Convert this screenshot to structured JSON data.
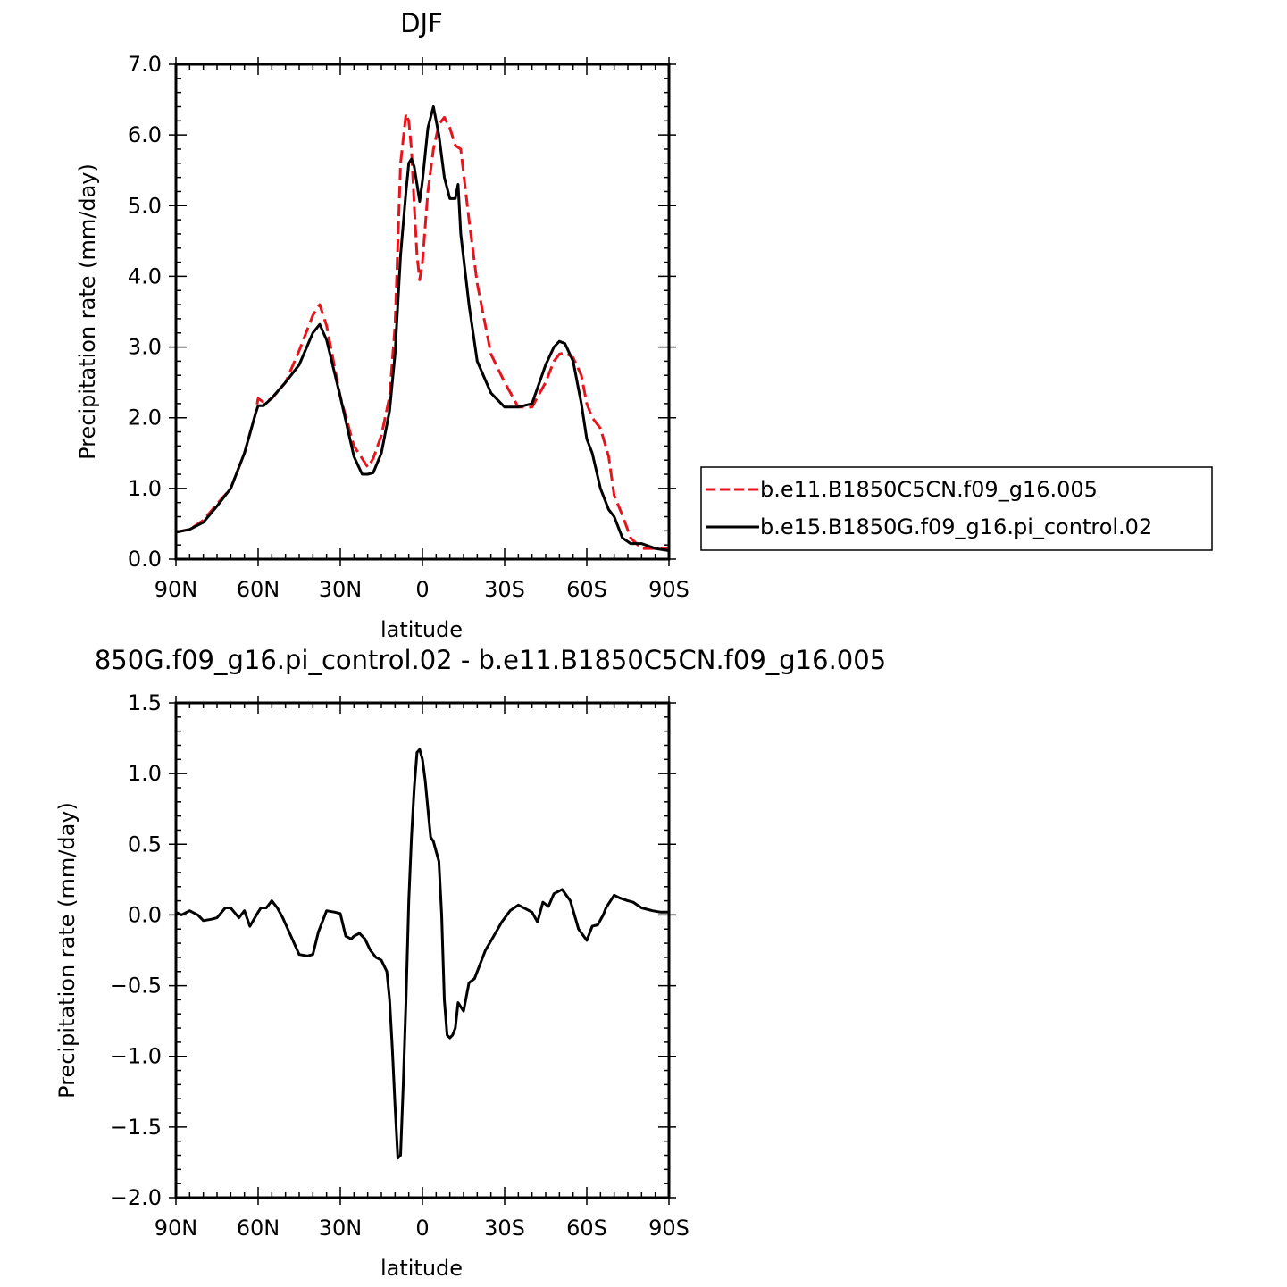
{
  "chart_data": [
    {
      "type": "line",
      "title": "DJF",
      "xlabel": "latitude",
      "ylabel": "Precipitation rate (mm/day)",
      "xlim": [
        -90,
        90
      ],
      "ylim": [
        0,
        7
      ],
      "x_ticks": [
        -90,
        -60,
        -30,
        0,
        30,
        60,
        90
      ],
      "x_tick_labels": [
        "90N",
        "60N",
        "30N",
        "0",
        "30S",
        "60S",
        "90S"
      ],
      "y_ticks": [
        0,
        1,
        2,
        3,
        4,
        5,
        6,
        7
      ],
      "y_tick_labels": [
        "0.0",
        "1.0",
        "2.0",
        "3.0",
        "4.0",
        "5.0",
        "6.0",
        "7.0"
      ],
      "grid": false,
      "legend_position": "right",
      "series": [
        {
          "name": "b.e11.B1850C5CN.f09_g16.005",
          "color": "#e8141c",
          "dash": "dashed",
          "x": [
            -90,
            -85,
            -80,
            -75,
            -70,
            -65,
            -61,
            -60,
            -58,
            -55,
            -50,
            -45,
            -40,
            -37.5,
            -35,
            -30,
            -25,
            -20,
            -18,
            -15,
            -12,
            -10,
            -8,
            -6,
            -5,
            -4,
            -3,
            -2,
            -1,
            0,
            2,
            4,
            6,
            8,
            10,
            12,
            14,
            17,
            20,
            25,
            30,
            35,
            40,
            45,
            48,
            50,
            52,
            55,
            58,
            60,
            62,
            65,
            68,
            70,
            73,
            76,
            80,
            85,
            90
          ],
          "values": [
            0.38,
            0.42,
            0.55,
            0.78,
            1.0,
            1.5,
            2.05,
            2.27,
            2.22,
            2.27,
            2.5,
            2.95,
            3.45,
            3.6,
            3.3,
            2.3,
            1.6,
            1.3,
            1.42,
            1.75,
            2.3,
            3.3,
            5.6,
            6.3,
            6.2,
            5.8,
            5.0,
            4.3,
            3.95,
            4.2,
            5.2,
            5.8,
            6.15,
            6.25,
            6.1,
            5.85,
            5.8,
            4.8,
            3.9,
            2.9,
            2.5,
            2.15,
            2.15,
            2.5,
            2.8,
            2.9,
            2.92,
            2.85,
            2.6,
            2.2,
            2.0,
            1.85,
            1.45,
            0.9,
            0.62,
            0.3,
            0.15,
            0.15,
            0.15
          ]
        },
        {
          "name": "b.e15.B1850G.f09_g16.pi_control.02",
          "color": "#000000",
          "dash": "solid",
          "x": [
            -90,
            -85,
            -80,
            -75,
            -70,
            -65,
            -61,
            -60,
            -58,
            -55,
            -50,
            -45,
            -40,
            -37.5,
            -35,
            -30,
            -25,
            -22,
            -20,
            -18,
            -15,
            -12,
            -10,
            -8,
            -6,
            -5,
            -4,
            -3,
            -2,
            -1,
            0,
            2,
            4,
            6,
            8,
            10,
            12,
            13,
            14,
            17,
            20,
            25,
            30,
            35,
            40,
            45,
            48,
            50,
            52,
            55,
            58,
            60,
            62,
            65,
            68,
            70,
            73,
            76,
            80,
            85,
            90
          ],
          "values": [
            0.38,
            0.42,
            0.52,
            0.75,
            1.0,
            1.5,
            2.05,
            2.17,
            2.17,
            2.28,
            2.5,
            2.75,
            3.2,
            3.32,
            3.1,
            2.3,
            1.45,
            1.2,
            1.2,
            1.22,
            1.5,
            2.1,
            2.9,
            4.3,
            5.2,
            5.6,
            5.66,
            5.55,
            5.3,
            5.06,
            5.35,
            6.1,
            6.4,
            6.0,
            5.4,
            5.1,
            5.1,
            5.3,
            4.6,
            3.6,
            2.8,
            2.35,
            2.15,
            2.15,
            2.2,
            2.75,
            3.0,
            3.08,
            3.05,
            2.8,
            2.2,
            1.7,
            1.5,
            1.0,
            0.7,
            0.6,
            0.3,
            0.22,
            0.22,
            0.15,
            0.12
          ]
        }
      ]
    },
    {
      "type": "line",
      "title": "850G.f09_g16.pi_control.02 - b.e11.B1850C5CN.f09_g16.005",
      "xlabel": "latitude",
      "ylabel": "Precipitation rate (mm/day)",
      "xlim": [
        -90,
        90
      ],
      "ylim": [
        -2,
        1.5
      ],
      "x_ticks": [
        -90,
        -60,
        -30,
        0,
        30,
        60,
        90
      ],
      "x_tick_labels": [
        "90N",
        "60N",
        "30N",
        "0",
        "30S",
        "60S",
        "90S"
      ],
      "y_ticks": [
        -2,
        -1.5,
        -1,
        -0.5,
        0,
        0.5,
        1,
        1.5
      ],
      "y_tick_labels": [
        "−2.0",
        "−1.5",
        "−1.0",
        "−0.5",
        "0.0",
        "0.5",
        "1.0",
        "1.5"
      ],
      "grid": false,
      "series": [
        {
          "color": "#000000",
          "dash": "solid",
          "x": [
            -90,
            -88,
            -85,
            -82,
            -80,
            -77,
            -75,
            -72,
            -70,
            -67,
            -65,
            -63,
            -60,
            -59,
            -57,
            -55,
            -53,
            -51,
            -48,
            -45,
            -42,
            -40,
            -38,
            -35,
            -32,
            -30,
            -28,
            -26,
            -25,
            -23,
            -21,
            -19,
            -17,
            -15,
            -13,
            -12,
            -11,
            -10,
            -9,
            -8,
            -7,
            -6,
            -5,
            -4,
            -3,
            -2,
            -1,
            0,
            1,
            2,
            3,
            4,
            5,
            6,
            7,
            8,
            9,
            10,
            11,
            12,
            13,
            14,
            15,
            17,
            19,
            21,
            23,
            26,
            29,
            32,
            35,
            38,
            40,
            42,
            44,
            46,
            48,
            51,
            54,
            57,
            60,
            62,
            64,
            66,
            67,
            68,
            70,
            72,
            75,
            77,
            80,
            84,
            87,
            90
          ],
          "values": [
            0.02,
            0.0,
            0.03,
            0.0,
            -0.04,
            -0.03,
            -0.02,
            0.05,
            0.05,
            -0.02,
            0.03,
            -0.08,
            0.02,
            0.05,
            0.05,
            0.1,
            0.05,
            -0.02,
            -0.15,
            -0.28,
            -0.29,
            -0.28,
            -0.12,
            0.03,
            0.02,
            0.01,
            -0.15,
            -0.17,
            -0.15,
            -0.13,
            -0.17,
            -0.25,
            -0.3,
            -0.32,
            -0.4,
            -0.6,
            -0.95,
            -1.35,
            -1.72,
            -1.7,
            -1.2,
            -0.6,
            0.1,
            0.55,
            0.9,
            1.15,
            1.17,
            1.1,
            0.95,
            0.75,
            0.55,
            0.52,
            0.45,
            0.38,
            0.0,
            -0.6,
            -0.85,
            -0.87,
            -0.85,
            -0.8,
            -0.62,
            -0.65,
            -0.68,
            -0.48,
            -0.45,
            -0.35,
            -0.25,
            -0.15,
            -0.05,
            0.03,
            0.07,
            0.04,
            0.02,
            -0.05,
            0.09,
            0.06,
            0.15,
            0.18,
            0.1,
            -0.1,
            -0.18,
            -0.08,
            -0.07,
            0.0,
            0.05,
            0.08,
            0.14,
            0.12,
            0.1,
            0.09,
            0.05,
            0.03,
            0.02,
            0.02
          ]
        }
      ]
    }
  ]
}
